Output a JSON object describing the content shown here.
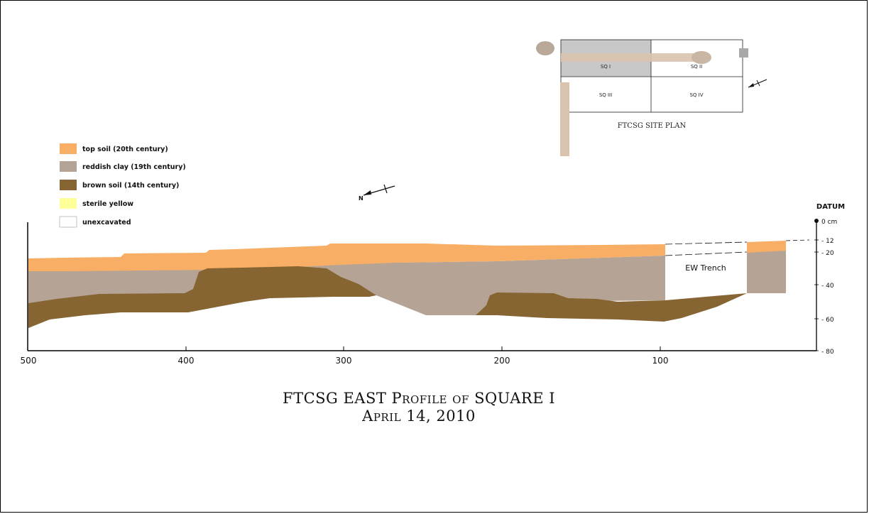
{
  "legend": [
    {
      "label": "top soil (20th century)",
      "color": "#F8AE65"
    },
    {
      "label": "reddish clay (19th century)",
      "color": "#B5A496"
    },
    {
      "label": "brown soil (14th century)",
      "color": "#876532"
    },
    {
      "label": "sterile yellow",
      "color": "#FFFF99"
    },
    {
      "label": "unexcavated",
      "color": "#FFFFFF"
    }
  ],
  "site_plan": {
    "caption": "FTCSG SITE PLAN",
    "squares": [
      "SQ I",
      "SQ II",
      "SQ III",
      "SQ IV"
    ]
  },
  "profile": {
    "x_ticks": [
      "500",
      "400",
      "300",
      "200",
      "100"
    ],
    "datum_label": "DATUM",
    "depth_ticks": [
      "0 cm",
      "- 12",
      "- 20",
      "- 40",
      "- 60",
      "- 80"
    ],
    "trench_label": "EW Trench",
    "compass_label": "N"
  },
  "title": {
    "line1": "FTCSG EAST Profile of SQUARE I",
    "line2": "April 14, 2010"
  }
}
